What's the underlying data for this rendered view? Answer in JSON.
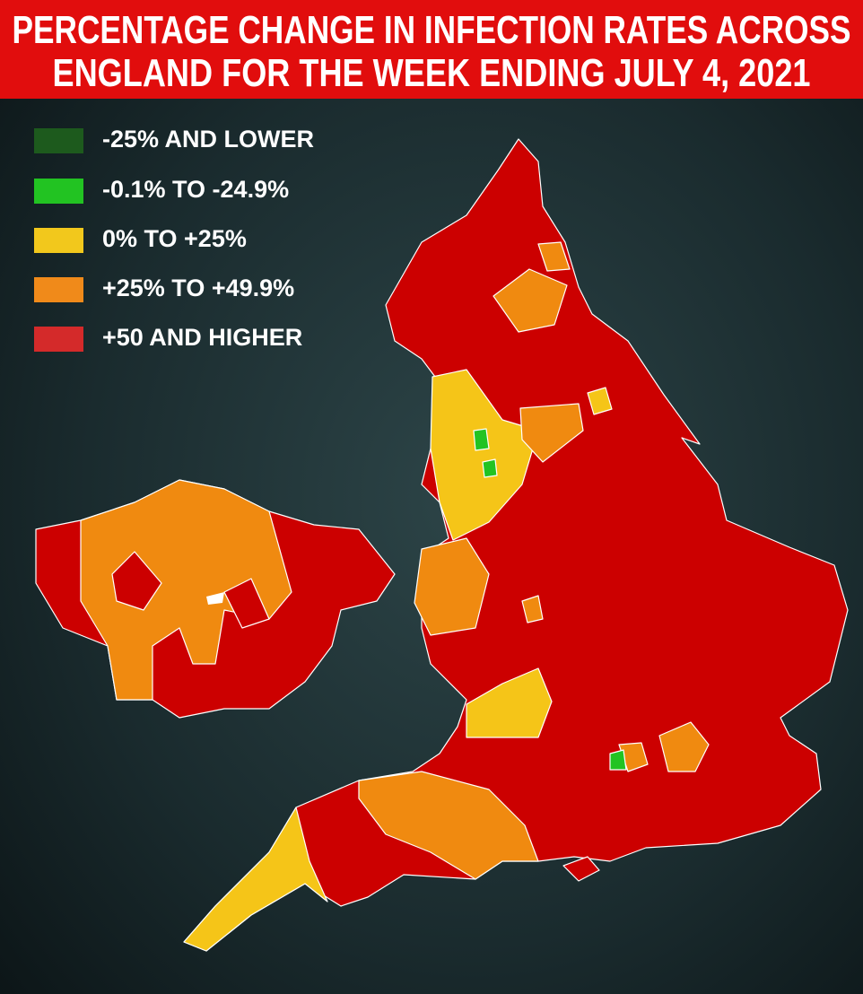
{
  "header": {
    "title": [
      "PERCENTAGE CHANGE IN INFECTION RATES ACROSS",
      "ENGLAND FOR THE WEEK ENDING JULY 4, 2021"
    ]
  },
  "legend": {
    "items": [
      {
        "label": "-25% AND LOWER",
        "color": "#1d5a1d"
      },
      {
        "label": "-0.1% TO -24.9%",
        "color": "#22c322"
      },
      {
        "label": "0% TO +25%",
        "color": "#f2c81c"
      },
      {
        "label": "+25% TO +49.9%",
        "color": "#f08a1a"
      },
      {
        "label": "+50 AND HIGHER",
        "color": "#d42a2a"
      }
    ]
  }
}
